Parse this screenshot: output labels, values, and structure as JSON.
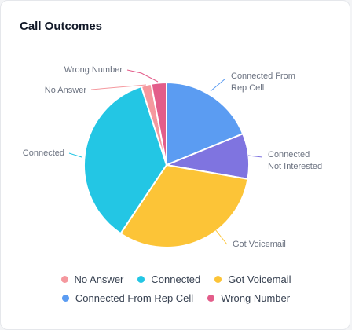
{
  "card": {
    "title": "Call Outcomes"
  },
  "chart_data": {
    "type": "pie",
    "title": "Call Outcomes",
    "categories": [
      "Connected From Rep Cell",
      "Connected Not Interested",
      "Got Voicemail",
      "Connected",
      "No Answer",
      "Wrong Number"
    ],
    "values": [
      19,
      9,
      32,
      36,
      2,
      3
    ],
    "colors": [
      "#5b9cf2",
      "#7f74e0",
      "#fcc437",
      "#23c6e4",
      "#f5989e",
      "#e35d8a"
    ],
    "slice_labels": [
      [
        "Connected From",
        "Rep Cell"
      ],
      [
        "Connected",
        "Not Interested"
      ],
      [
        "Got Voicemail"
      ],
      [
        "Connected"
      ],
      [
        "No Answer"
      ],
      [
        "Wrong Number"
      ]
    ],
    "legend_position": "bottom"
  },
  "legend": {
    "rows": [
      [
        {
          "label": "No Answer",
          "color": "#f5989e"
        },
        {
          "label": "Connected",
          "color": "#23c6e4"
        },
        {
          "label": "Got Voicemail",
          "color": "#fcc437"
        }
      ],
      [
        {
          "label": "Connected From Rep Cell",
          "color": "#5b9cf2"
        },
        {
          "label": "Wrong Number",
          "color": "#e35d8a"
        }
      ]
    ]
  }
}
